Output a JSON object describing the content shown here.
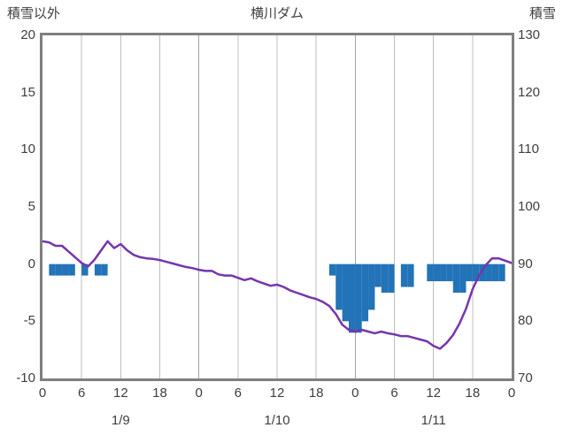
{
  "header": {
    "left_axis_title": "積雪以外",
    "title": "横川ダム",
    "right_axis_title": "積雪"
  },
  "chart_data": {
    "type": "bar+line",
    "title": "横川ダム",
    "x_axis": {
      "unit": "hour",
      "total_hours": 72,
      "tick_interval_hours": 6,
      "tick_labels": [
        "0",
        "6",
        "12",
        "18",
        "0",
        "6",
        "12",
        "18",
        "0",
        "6",
        "12",
        "18",
        "0"
      ],
      "day_labels": [
        "1/9",
        "1/10",
        "1/11"
      ]
    },
    "left_axis": {
      "title": "積雪以外",
      "min": -10,
      "max": 20,
      "ticks": [
        20,
        15,
        10,
        5,
        0,
        -5,
        -10
      ]
    },
    "right_axis": {
      "title": "積雪",
      "min": 70,
      "max": 130,
      "ticks": [
        130,
        120,
        110,
        100,
        90,
        80,
        70
      ]
    },
    "grid": {
      "vertical": true,
      "horizontal": false,
      "color": "#bfbfbf",
      "day_boundary_color": "#a3a3a3"
    },
    "border_color": "#7f7f7f",
    "series": [
      {
        "name": "line-series",
        "type": "line",
        "axis": "left",
        "color": "#7635ad",
        "values": [
          2.0,
          1.9,
          1.6,
          1.6,
          1.1,
          0.6,
          0.1,
          -0.2,
          0.4,
          1.2,
          2.0,
          1.4,
          1.75,
          1.2,
          0.8,
          0.6,
          0.5,
          0.45,
          0.35,
          0.2,
          0.05,
          -0.1,
          -0.25,
          -0.35,
          -0.5,
          -0.6,
          -0.6,
          -0.9,
          -1.0,
          -1.0,
          -1.2,
          -1.4,
          -1.25,
          -1.5,
          -1.7,
          -1.9,
          -1.8,
          -2.0,
          -2.3,
          -2.5,
          -2.7,
          -2.9,
          -3.05,
          -3.3,
          -3.65,
          -4.35,
          -5.3,
          -5.75,
          -5.9,
          -5.75,
          -5.9,
          -6.05,
          -5.9,
          -6.05,
          -6.15,
          -6.3,
          -6.3,
          -6.45,
          -6.6,
          -6.75,
          -7.15,
          -7.4,
          -6.9,
          -6.2,
          -5.2,
          -3.9,
          -2.2,
          -1.0,
          -0.1,
          0.5,
          0.5,
          0.3,
          0.1
        ]
      },
      {
        "name": "bar-series",
        "type": "bar",
        "axis": "left",
        "color": "#2273b8",
        "values_hourly": [
          null,
          -1,
          -1,
          -1,
          -1,
          null,
          -1,
          null,
          -1,
          -1,
          null,
          null,
          null,
          null,
          null,
          null,
          null,
          null,
          null,
          null,
          null,
          null,
          null,
          null,
          null,
          null,
          null,
          null,
          null,
          null,
          null,
          null,
          null,
          null,
          null,
          null,
          null,
          null,
          null,
          null,
          null,
          null,
          null,
          null,
          -1,
          -4,
          -5,
          -6,
          -6,
          -5,
          -4,
          -2,
          -2.5,
          -2.5,
          null,
          -2,
          -2,
          null,
          null,
          -1.5,
          -1.5,
          -1.5,
          -1.5,
          -2.5,
          -2.5,
          -1.5,
          -1.5,
          -1.5,
          -1.5,
          -1.5,
          -1.5,
          null
        ]
      }
    ]
  }
}
